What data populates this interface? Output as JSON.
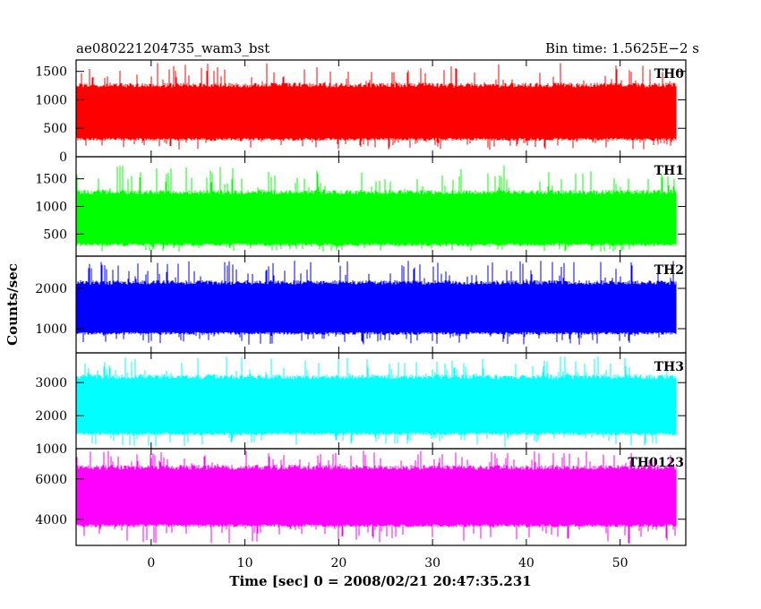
{
  "chart_data": {
    "type": "line",
    "title_left": "ae080221204735_wam3_bst",
    "title_right": "Bin time: 1.5625E−2 s",
    "xlabel": "Time [sec] 0 = 2008/02/21 20:47:35.231",
    "ylabel": "Counts/sec",
    "xlim": [
      -8,
      57
    ],
    "x_data_range": [
      -8,
      56
    ],
    "x_ticks": [
      0,
      10,
      20,
      30,
      40,
      50
    ],
    "x_tick_labels": [
      "0",
      "10",
      "20",
      "30",
      "40",
      "50"
    ],
    "grid": false,
    "panels": [
      {
        "name": "TH0",
        "color": "#ff0000",
        "ylim": [
          0,
          1700
        ],
        "y_ticks": [
          0,
          500,
          1000,
          1500
        ],
        "y_tick_labels": [
          "0",
          "500",
          "1000",
          "1500"
        ],
        "typical_min": 280,
        "typical_max": 1300,
        "dip_min": 120,
        "peak_max": 1650
      },
      {
        "name": "TH1",
        "color": "#00ff00",
        "ylim": [
          100,
          1900
        ],
        "y_ticks": [
          500,
          1000,
          1500
        ],
        "y_tick_labels": [
          "500",
          "1000",
          "1500"
        ],
        "typical_min": 280,
        "typical_max": 1300,
        "dip_min": 180,
        "peak_max": 1750
      },
      {
        "name": "TH2",
        "color": "#0000ff",
        "ylim": [
          400,
          2800
        ],
        "y_ticks": [
          1000,
          2000
        ],
        "y_tick_labels": [
          "1000",
          "2000"
        ],
        "typical_min": 850,
        "typical_max": 2200,
        "dip_min": 600,
        "peak_max": 2700
      },
      {
        "name": "TH3",
        "color": "#00ffff",
        "ylim": [
          1000,
          3900
        ],
        "y_ticks": [
          1000,
          2000,
          3000
        ],
        "y_tick_labels": [
          "1000",
          "2000",
          "3000"
        ],
        "typical_min": 1400,
        "typical_max": 3250,
        "dip_min": 1050,
        "peak_max": 3800
      },
      {
        "name": "TH0123",
        "color": "#ff00ff",
        "ylim": [
          2700,
          7500
        ],
        "y_ticks": [
          4000,
          6000
        ],
        "y_tick_labels": [
          "4000",
          "6000"
        ],
        "typical_min": 3600,
        "typical_max": 6700,
        "dip_min": 2800,
        "peak_max": 7400
      }
    ]
  }
}
